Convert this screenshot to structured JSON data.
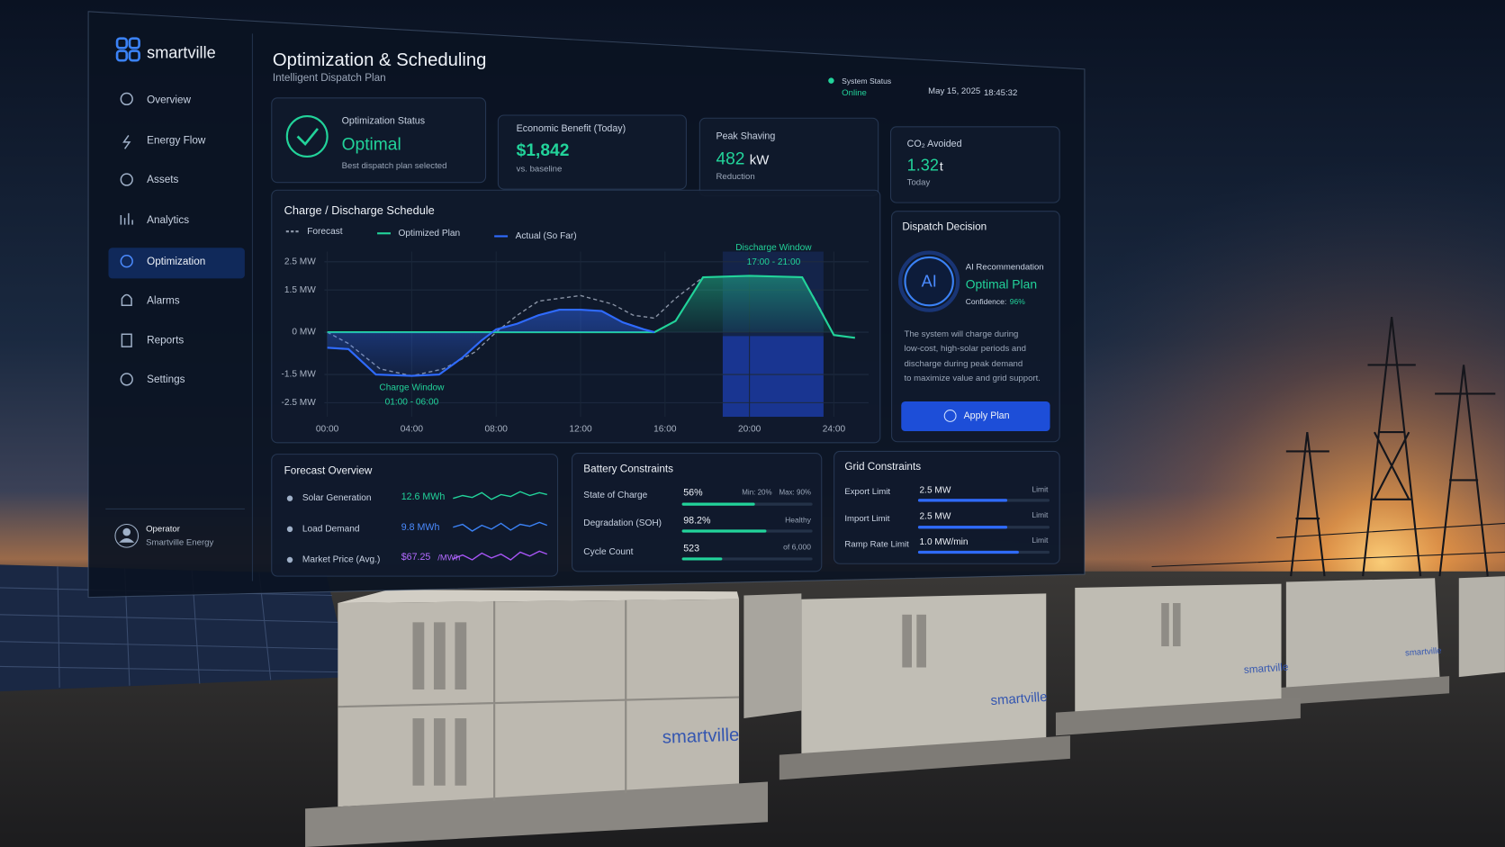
{
  "brand": "smartville",
  "nav": [
    "Overview",
    "Energy Flow",
    "Assets",
    "Analytics",
    "Optimization",
    "Alarms",
    "Reports",
    "Settings"
  ],
  "operator": {
    "role": "Operator",
    "org": "Smartville Energy"
  },
  "header": {
    "title": "Optimization & Scheduling",
    "subtitle": "Intelligent Dispatch Plan",
    "status_label": "System Status",
    "status": "Online",
    "date": "May 15, 2025",
    "time": "18:45:32"
  },
  "kpis": [
    {
      "label": "Optimization Status",
      "value": "Optimal",
      "note": "Best dispatch plan selected"
    },
    {
      "label": "Economic Benefit (Today)",
      "value": "$1,842",
      "note": "vs. baseline"
    },
    {
      "label": "Peak Shaving",
      "value": "482",
      "unit": "kW",
      "note": "Reduction"
    },
    {
      "label": "CO₂ Avoided",
      "value": "1.32",
      "unit": "t",
      "note": "Today"
    }
  ],
  "chart_data": {
    "type": "line",
    "title": "Charge / Discharge Schedule",
    "grid": true,
    "xlim": [
      0,
      25.6
    ],
    "xticks": [
      {
        "value": 0,
        "label": "00:00"
      },
      {
        "value": 4,
        "label": "04:00"
      },
      {
        "value": 8,
        "label": "08:00"
      },
      {
        "value": 12,
        "label": "12:00"
      },
      {
        "value": 16,
        "label": "16:00"
      },
      {
        "value": 20,
        "label": "20:00"
      },
      {
        "value": 24,
        "label": "24:00"
      }
    ],
    "ylim": [
      -3,
      3.2
    ],
    "yticks": [
      {
        "value": 2.5,
        "label": "2.5 MW"
      },
      {
        "value": 1.5,
        "label": "1.5 MW"
      },
      {
        "value": 0,
        "label": "0 MW"
      },
      {
        "value": -1.5,
        "label": "-1.5 MW"
      },
      {
        "value": -2.5,
        "label": "-2.5 MW"
      }
    ],
    "series": [
      {
        "name": "Forecast",
        "color": "#8a94a6",
        "style": "dashed",
        "x": [
          0,
          1,
          2.5,
          4,
          5.5,
          7,
          8,
          9,
          10,
          12,
          13.5,
          14.5,
          15.5,
          16.5,
          17.8,
          20,
          22.5,
          23.3,
          24,
          25
        ],
        "values": [
          0,
          -0.4,
          -1.3,
          -1.55,
          -1.3,
          -0.7,
          0,
          0.6,
          1.1,
          1.3,
          1.0,
          0.6,
          0.5,
          1.2,
          1.95,
          2.0,
          1.95,
          0.9,
          -0.1,
          -0.2
        ]
      },
      {
        "name": "Optimized Plan",
        "color": "#22d39a",
        "style": "solid",
        "x": [
          0,
          15.5,
          16.5,
          17.8,
          20,
          22.5,
          23.2,
          24,
          25
        ],
        "values": [
          0,
          0,
          0.4,
          1.95,
          2.0,
          1.95,
          1.0,
          -0.1,
          -0.2
        ]
      },
      {
        "name": "Actual (So Far)",
        "color": "#2f6bff",
        "style": "solid",
        "x": [
          0,
          1,
          2.3,
          4,
          5.3,
          6.4,
          7.3,
          8,
          9,
          10,
          11,
          12,
          13,
          14,
          15,
          15.5
        ],
        "values": [
          -0.55,
          -0.6,
          -1.5,
          -1.55,
          -1.5,
          -0.9,
          -0.3,
          0.1,
          0.3,
          0.6,
          0.8,
          0.8,
          0.75,
          0.35,
          0.1,
          0
        ]
      }
    ],
    "annotations": [
      {
        "title": "Charge Window",
        "range": "01:00 - 06:00"
      },
      {
        "title": "Discharge Window",
        "range": "17:00 - 21:00"
      }
    ]
  },
  "dispatch": {
    "title": "Dispatch Decision",
    "badge": "AI",
    "label": "AI Recommendation",
    "plan": "Optimal Plan",
    "confidence_label": "Confidence:",
    "confidence": "96%",
    "description": [
      "The system will charge during",
      "low-cost, high-solar periods and",
      "discharge during peak demand",
      "to maximize value and grid support."
    ],
    "action": "Apply Plan"
  },
  "forecast": {
    "title": "Forecast Overview",
    "rows": [
      {
        "label": "Solar Generation",
        "value": "12.6 MWh"
      },
      {
        "label": "Load Demand",
        "value": "9.8 MWh"
      },
      {
        "label": "Market Price (Avg.)",
        "value": "$67.25",
        "unit": "/MWh"
      }
    ]
  },
  "battery": {
    "title": "Battery Constraints",
    "rows": [
      {
        "label": "State of Charge",
        "value": "56%",
        "notes": [
          "Min: 20%",
          "Max: 90%"
        ]
      },
      {
        "label": "Degradation (SOH)",
        "value": "98.2%",
        "notes": [
          "Healthy"
        ]
      },
      {
        "label": "Cycle Count",
        "value": "523",
        "notes": [
          "of 6,000"
        ]
      }
    ]
  },
  "grid": {
    "title": "Grid Constraints",
    "rows": [
      {
        "label": "Export Limit",
        "value": "2.5 MW",
        "note": "Limit"
      },
      {
        "label": "Import Limit",
        "value": "2.5 MW",
        "note": "Limit"
      },
      {
        "label": "Ramp Rate Limit",
        "value": "1.0 MW/min",
        "note": "Limit"
      }
    ]
  },
  "scene": {
    "cabinet_labels": [
      "smartville",
      "smartville",
      "smartville",
      "smartville"
    ]
  }
}
